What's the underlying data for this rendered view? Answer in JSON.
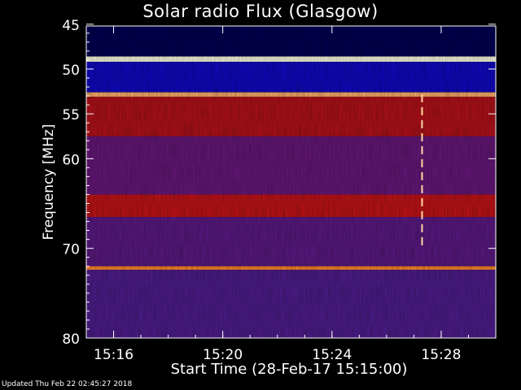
{
  "chart_data": {
    "type": "heatmap",
    "title": "Solar radio Flux (Glasgow)",
    "xlabel": "Start Time (28-Feb-17 15:15:00)",
    "ylabel": "Frequency [MHz]",
    "x_range_minutes": [
      0.0,
      15.0
    ],
    "x_ticks": [
      {
        "minute": 1,
        "label": "15:16"
      },
      {
        "minute": 5,
        "label": "15:20"
      },
      {
        "minute": 9,
        "label": "15:24"
      },
      {
        "minute": 13,
        "label": "15:28"
      }
    ],
    "y_range_mhz": [
      45.2,
      80.0
    ],
    "y_ticks": [
      45,
      50,
      55,
      60,
      70,
      80
    ],
    "y_axis_inverted": true,
    "colormap": [
      "#000010",
      "#0000d0",
      "#3d1f9a",
      "#6a1678",
      "#b0101a",
      "#e41a10",
      "#ff8c30",
      "#ffffe0"
    ],
    "intensity_bands": [
      {
        "from_mhz": 45.2,
        "to_mhz": 48.6,
        "level": 0.05
      },
      {
        "from_mhz": 48.6,
        "to_mhz": 49.2,
        "level": 1.0
      },
      {
        "from_mhz": 49.2,
        "to_mhz": 52.6,
        "level": 0.18
      },
      {
        "from_mhz": 52.6,
        "to_mhz": 53.1,
        "level": 0.9
      },
      {
        "from_mhz": 53.1,
        "to_mhz": 57.5,
        "level": 0.58
      },
      {
        "from_mhz": 57.5,
        "to_mhz": 64.0,
        "level": 0.42
      },
      {
        "from_mhz": 64.0,
        "to_mhz": 66.5,
        "level": 0.62
      },
      {
        "from_mhz": 66.5,
        "to_mhz": 72.0,
        "level": 0.38
      },
      {
        "from_mhz": 72.0,
        "to_mhz": 72.4,
        "level": 0.85
      },
      {
        "from_mhz": 72.4,
        "to_mhz": 80.0,
        "level": 0.34
      }
    ],
    "events": [
      {
        "minute": 12.3,
        "from_mhz": 52.8,
        "to_mhz": 70.2,
        "level": 0.95
      }
    ]
  },
  "footer": "Updated Thu Feb 22 02:45:27 2018"
}
